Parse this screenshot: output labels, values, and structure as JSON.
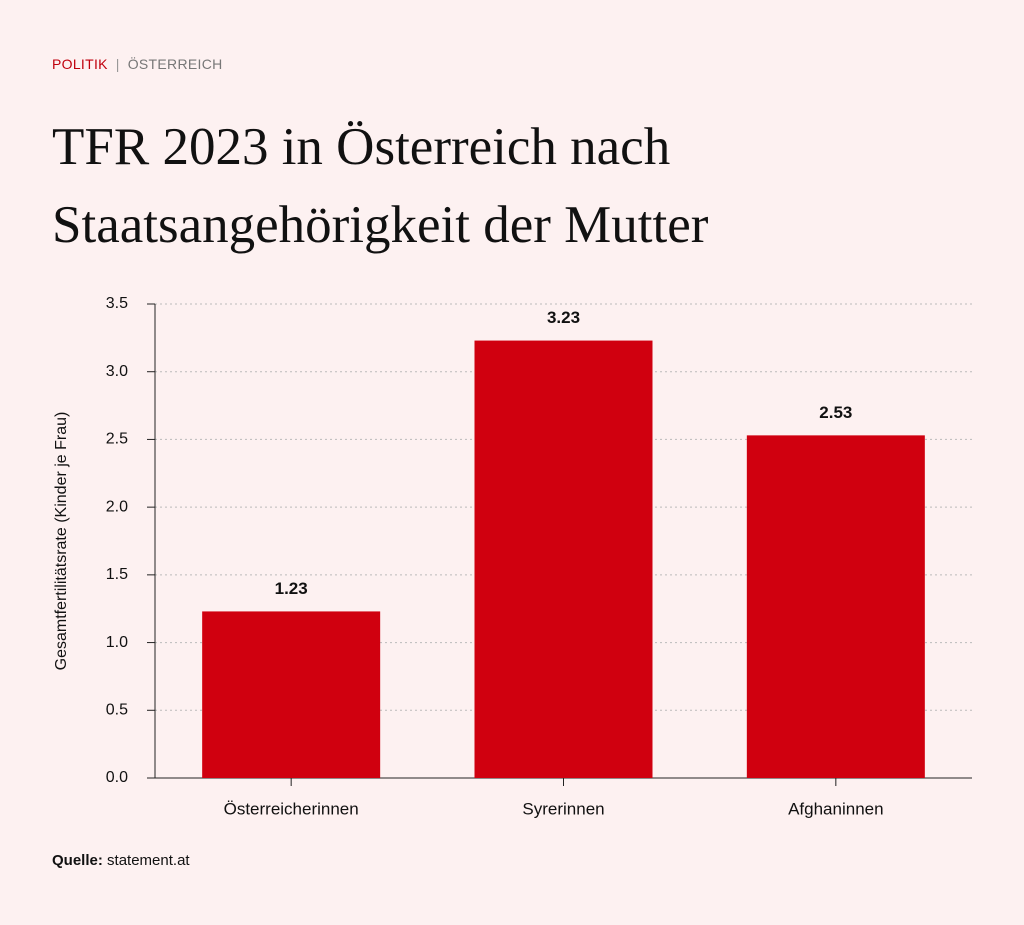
{
  "section": "POLITIK",
  "subsection": "ÖSTERREICH",
  "source_label": "Quelle:",
  "source": "statement.at",
  "chart_data": {
    "type": "bar",
    "title": "TFR 2023 in Österreich nach Staatsangehörigkeit der Mutter",
    "ylabel": "Gesamtfertilitätsrate (Kinder je Frau)",
    "categories": [
      "Österreicherinnen",
      "Syrerinnen",
      "Afghaninnen"
    ],
    "values": [
      1.23,
      3.23,
      2.53
    ],
    "color": "#d0000f",
    "ylim": [
      0,
      3.5
    ],
    "yticks": [
      {
        "value": 0,
        "label": "0.0"
      },
      0.5,
      {
        "value": 1,
        "label": "1.0"
      },
      1.5,
      {
        "value": 2,
        "label": "2.0"
      },
      2.5,
      {
        "value": 3,
        "label": "3.0"
      },
      3.5
    ],
    "grid": true
  }
}
